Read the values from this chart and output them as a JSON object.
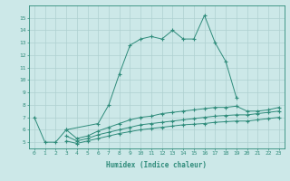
{
  "xlabel": "Humidex (Indice chaleur)",
  "x_values": [
    0,
    1,
    2,
    3,
    4,
    5,
    6,
    7,
    8,
    9,
    10,
    11,
    12,
    13,
    14,
    15,
    16,
    17,
    18,
    19,
    20,
    21,
    22,
    23
  ],
  "line1_y": [
    7.0,
    5.0,
    5.0,
    6.0,
    null,
    null,
    6.5,
    8.0,
    10.5,
    12.8,
    13.3,
    13.5,
    13.3,
    14.0,
    13.3,
    13.3,
    15.2,
    13.0,
    11.5,
    8.6,
    null,
    null,
    null,
    null
  ],
  "line2_y": [
    null,
    null,
    null,
    6.0,
    5.3,
    5.5,
    5.9,
    6.2,
    6.5,
    6.8,
    7.0,
    7.1,
    7.3,
    7.4,
    7.5,
    7.6,
    7.7,
    7.8,
    7.8,
    7.9,
    7.5,
    7.5,
    7.6,
    7.8
  ],
  "line3_y": [
    null,
    null,
    null,
    5.5,
    5.1,
    5.3,
    5.6,
    5.8,
    6.0,
    6.2,
    6.4,
    6.5,
    6.6,
    6.7,
    6.8,
    6.9,
    7.0,
    7.1,
    7.15,
    7.2,
    7.2,
    7.3,
    7.4,
    7.5
  ],
  "line4_y": [
    null,
    null,
    null,
    5.1,
    4.9,
    5.1,
    5.3,
    5.5,
    5.7,
    5.85,
    6.0,
    6.1,
    6.2,
    6.3,
    6.4,
    6.45,
    6.5,
    6.6,
    6.65,
    6.7,
    6.7,
    6.8,
    6.9,
    7.0
  ],
  "line_color": "#2e8b7a",
  "bg_color": "#cce8e8",
  "grid_color": "#aed0d0",
  "ylim": [
    4.5,
    16.0
  ],
  "xlim": [
    -0.5,
    23.5
  ],
  "yticks": [
    5,
    6,
    7,
    8,
    9,
    10,
    11,
    12,
    13,
    14,
    15
  ],
  "xticks": [
    0,
    1,
    2,
    3,
    4,
    5,
    6,
    7,
    8,
    9,
    10,
    11,
    12,
    13,
    14,
    15,
    16,
    17,
    18,
    19,
    20,
    21,
    22,
    23
  ]
}
